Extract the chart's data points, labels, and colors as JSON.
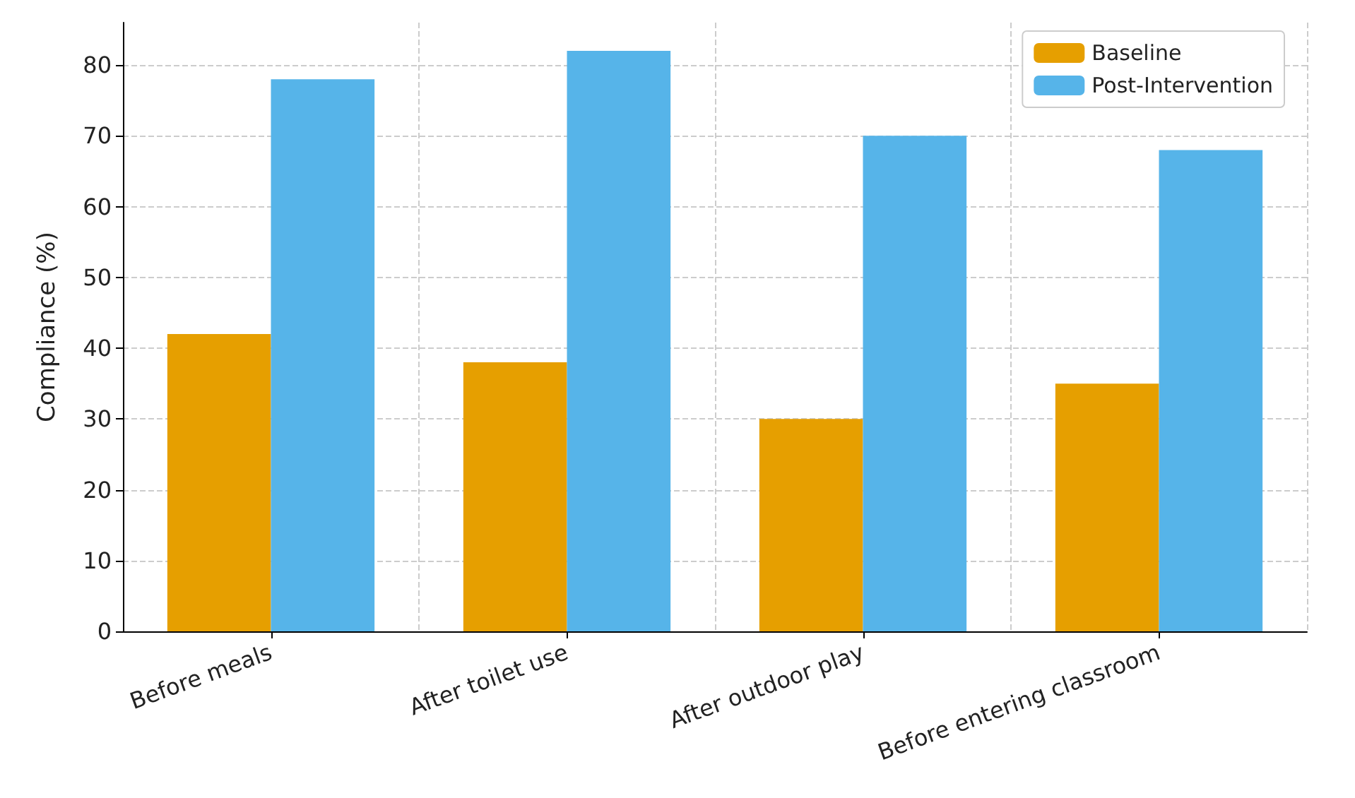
{
  "chart_data": {
    "type": "bar",
    "ylabel": "Compliance (%)",
    "categories": [
      "Before meals",
      "After toilet use",
      "After outdoor play",
      "Before entering classroom"
    ],
    "series": [
      {
        "name": "Baseline",
        "color": "#e69f00",
        "values": [
          42,
          38,
          30,
          35
        ]
      },
      {
        "name": "Post-Intervention",
        "color": "#56b4e9",
        "values": [
          78,
          82,
          70,
          68
        ]
      }
    ],
    "ylim": [
      0,
      86
    ],
    "yticks": [
      0,
      10,
      20,
      30,
      40,
      50,
      60,
      70,
      80
    ],
    "grid": true,
    "legend": "top right"
  }
}
